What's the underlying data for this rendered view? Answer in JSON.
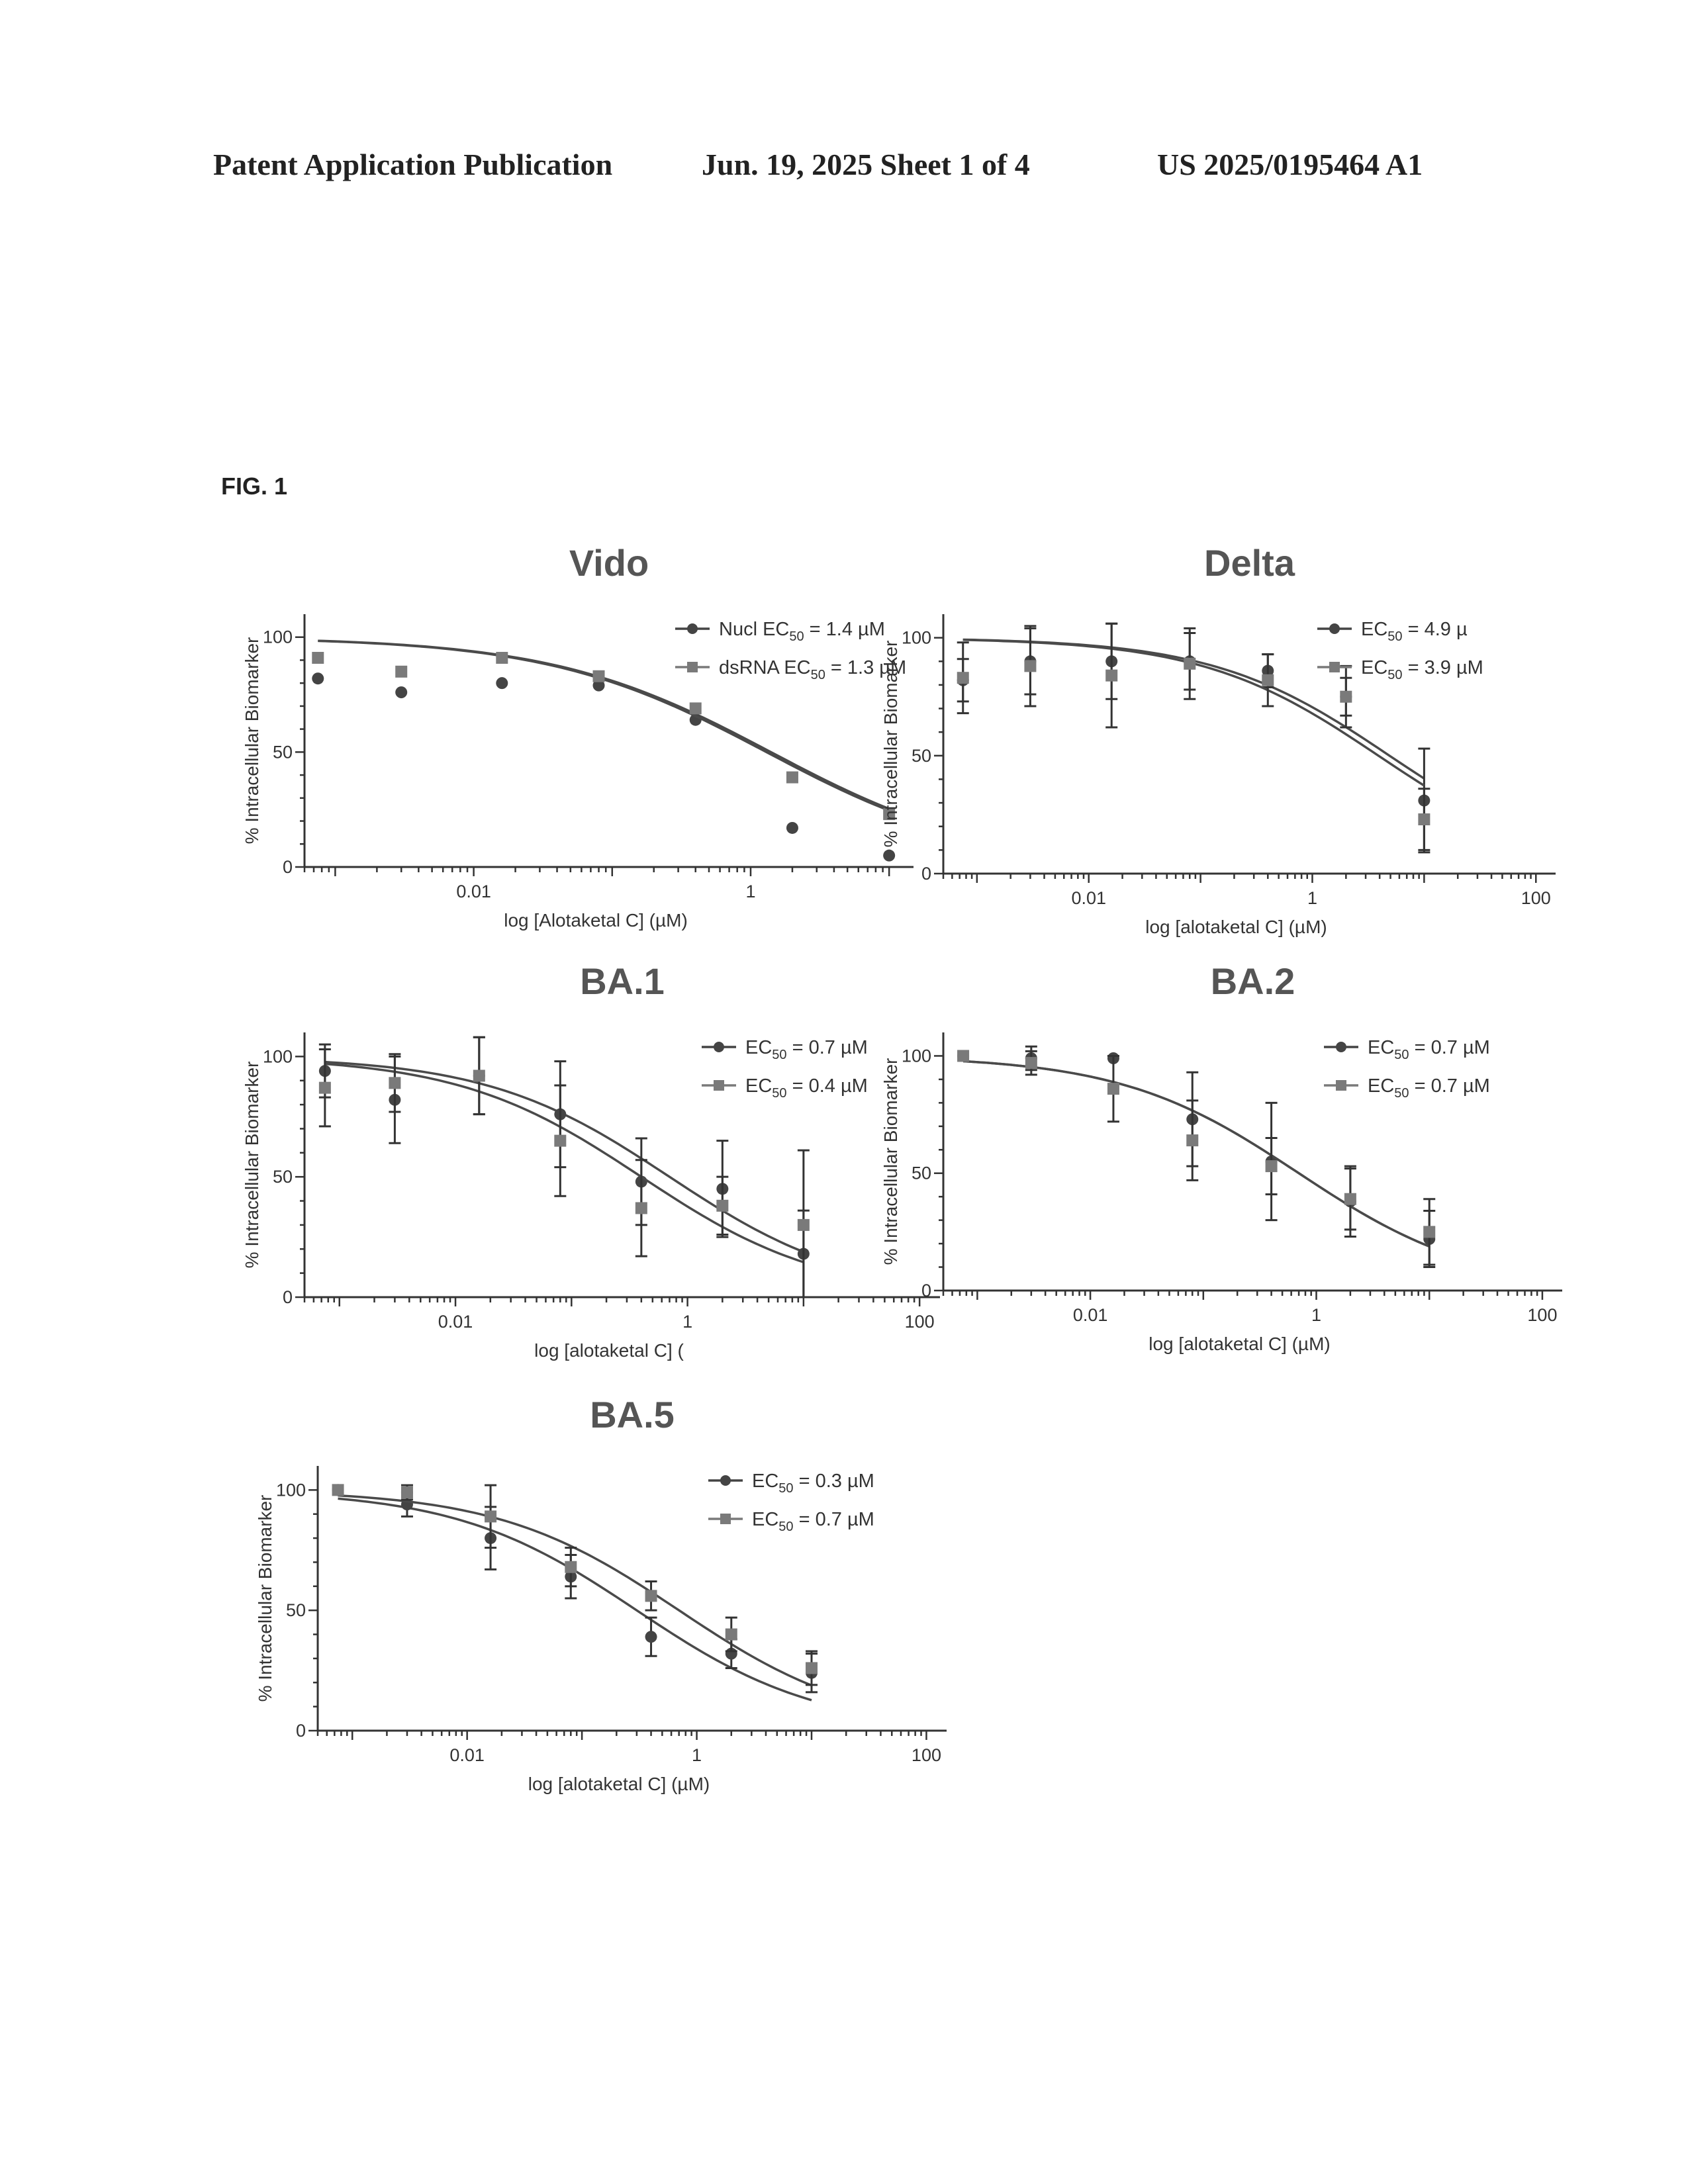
{
  "header": {
    "left": "Patent Application Publication",
    "middle": "Jun. 19, 2025  Sheet 1 of 4",
    "right": "US 2025/0195464 A1"
  },
  "figure_label": "FIG. 1",
  "colors": {
    "circle_series": "#444444",
    "square_series": "#7a7a7a",
    "axis": "#333333"
  },
  "chart_data": [
    {
      "type": "scatter",
      "title": "Vido",
      "xlabel": "log [Alotaketal C] (µM)",
      "ylabel": "% Intracellular Biomarker",
      "x_scale": "log",
      "xlim": [
        0.0006,
        15
      ],
      "ylim": [
        0,
        110
      ],
      "x_ticks": [
        0.01,
        1
      ],
      "x_tick_labels": [
        "0.01",
        "1"
      ],
      "y_ticks": [
        0,
        50,
        100
      ],
      "y_tick_labels": [
        "0",
        "50",
        "100"
      ],
      "series": [
        {
          "name": "Nucl",
          "legend": [
            "Nucl EC",
            "50",
            " = 1.4 µM"
          ],
          "ec50": 1.4,
          "marker": "circle",
          "points": [
            [
              0.00075,
              82
            ],
            [
              0.003,
              76
            ],
            [
              0.016,
              80
            ],
            [
              0.08,
              79
            ],
            [
              0.4,
              64
            ],
            [
              2.0,
              17
            ],
            [
              10,
              5
            ]
          ]
        },
        {
          "name": "dsRNA",
          "legend": [
            "dsRNA EC",
            "50",
            " = 1.3 µM"
          ],
          "ec50": 1.3,
          "marker": "square",
          "points": [
            [
              0.00075,
              91
            ],
            [
              0.003,
              85
            ],
            [
              0.016,
              91
            ],
            [
              0.08,
              83
            ],
            [
              0.4,
              69
            ],
            [
              2.0,
              39
            ],
            [
              10,
              23
            ]
          ]
        }
      ]
    },
    {
      "type": "scatter",
      "title": "Delta",
      "xlabel": "log [alotaketal C] (µM)",
      "ylabel": "% Intracellular Biomarker",
      "x_scale": "log",
      "xlim": [
        0.0005,
        150
      ],
      "ylim": [
        0,
        110
      ],
      "x_ticks": [
        0.01,
        1,
        100
      ],
      "x_tick_labels": [
        "0.01",
        "1",
        "100"
      ],
      "y_ticks": [
        0,
        50,
        100
      ],
      "y_tick_labels": [
        "0",
        "50",
        "100"
      ],
      "series": [
        {
          "name": "",
          "legend": [
            "EC",
            "50",
            " = 4.9 µ"
          ],
          "ec50": 4.9,
          "marker": "circle",
          "points": [
            [
              0.00075,
              82,
              9
            ],
            [
              0.003,
              90,
              14
            ],
            [
              0.016,
              90,
              16
            ],
            [
              0.08,
              90,
              12
            ],
            [
              0.4,
              86,
              7
            ],
            [
              2.0,
              75,
              8
            ],
            [
              10,
              31,
              22
            ]
          ]
        },
        {
          "name": "",
          "legend": [
            "EC",
            "50",
            " = 3.9 µM"
          ],
          "ec50": 3.9,
          "marker": "square",
          "points": [
            [
              0.00075,
              83,
              15
            ],
            [
              0.003,
              88,
              17
            ],
            [
              0.016,
              84,
              22
            ],
            [
              0.08,
              89,
              15
            ],
            [
              0.4,
              82,
              11
            ],
            [
              2.0,
              75,
              13
            ],
            [
              10,
              23,
              13
            ]
          ]
        }
      ]
    },
    {
      "type": "scatter",
      "title": "BA.1",
      "xlabel": "log [alotaketal C] (",
      "ylabel": "% Intracellular Biomarker",
      "x_scale": "log",
      "xlim": [
        0.0005,
        150
      ],
      "ylim": [
        0,
        110
      ],
      "x_ticks": [
        0.01,
        1,
        100
      ],
      "x_tick_labels": [
        "0.01",
        "1",
        "100"
      ],
      "y_ticks": [
        0,
        50,
        100
      ],
      "y_tick_labels": [
        "0",
        "50",
        "100"
      ],
      "series": [
        {
          "name": "",
          "legend": [
            "EC",
            "50",
            " = 0.7 µM"
          ],
          "ec50": 0.7,
          "marker": "circle",
          "points": [
            [
              0.00075,
              94,
              11
            ],
            [
              0.003,
              82,
              18
            ],
            [
              0.016,
              92,
              16
            ],
            [
              0.08,
              76,
              22
            ],
            [
              0.4,
              48,
              18
            ],
            [
              2.0,
              45,
              20
            ],
            [
              10,
              18,
              18
            ]
          ]
        },
        {
          "name": "",
          "legend": [
            "EC",
            "50",
            " = 0.4 µM"
          ],
          "ec50": 0.4,
          "marker": "square",
          "points": [
            [
              0.00075,
              87,
              16
            ],
            [
              0.003,
              89,
              12
            ],
            [
              0.016,
              92,
              16
            ],
            [
              0.08,
              65,
              23
            ],
            [
              0.4,
              37,
              20
            ],
            [
              2.0,
              38,
              12
            ],
            [
              10,
              30,
              31
            ]
          ]
        }
      ]
    },
    {
      "type": "scatter",
      "title": "BA.2",
      "xlabel": "log [alotaketal C] (µM)",
      "ylabel": "% Intracellular Biomarker",
      "x_scale": "log",
      "xlim": [
        0.0005,
        150
      ],
      "ylim": [
        0,
        110
      ],
      "x_ticks": [
        0.01,
        1,
        100
      ],
      "x_tick_labels": [
        "0.01",
        "1",
        "100"
      ],
      "y_ticks": [
        0,
        50,
        100
      ],
      "y_tick_labels": [
        "0",
        "50",
        "100"
      ],
      "series": [
        {
          "name": "",
          "legend": [
            "EC",
            "50",
            " = 0.7 µM"
          ],
          "ec50": 0.7,
          "marker": "circle",
          "points": [
            [
              0.00075,
              100,
              0
            ],
            [
              0.003,
              99,
              5
            ],
            [
              0.016,
              99,
              0
            ],
            [
              0.08,
              73,
              20
            ],
            [
              0.4,
              55,
              25
            ],
            [
              2.0,
              38,
              15
            ],
            [
              10,
              22,
              12
            ]
          ]
        },
        {
          "name": "",
          "legend": [
            "EC",
            "50",
            " = 0.7 µM"
          ],
          "ec50": 0.7,
          "marker": "square",
          "points": [
            [
              0.00075,
              100,
              0
            ],
            [
              0.003,
              97,
              5
            ],
            [
              0.016,
              86,
              14
            ],
            [
              0.08,
              64,
              17
            ],
            [
              0.4,
              53,
              12
            ],
            [
              2.0,
              39,
              13
            ],
            [
              10,
              25,
              14
            ]
          ]
        }
      ]
    },
    {
      "type": "scatter",
      "title": "BA.5",
      "xlabel": "log [alotaketal C] (µM)",
      "ylabel": "% Intracellular Biomarker",
      "x_scale": "log",
      "xlim": [
        0.0005,
        150
      ],
      "ylim": [
        0,
        110
      ],
      "x_ticks": [
        0.01,
        1,
        100
      ],
      "x_tick_labels": [
        "0.01",
        "1",
        "100"
      ],
      "y_ticks": [
        0,
        50,
        100
      ],
      "y_tick_labels": [
        "0",
        "50",
        "100"
      ],
      "series": [
        {
          "name": "",
          "legend": [
            "EC",
            "50",
            " = 0.3 µM"
          ],
          "ec50": 0.3,
          "marker": "circle",
          "points": [
            [
              0.00075,
              100,
              0
            ],
            [
              0.003,
              94,
              5
            ],
            [
              0.016,
              80,
              13
            ],
            [
              0.08,
              64,
              9
            ],
            [
              0.4,
              39,
              8
            ],
            [
              2.0,
              32,
              6
            ],
            [
              10,
              24,
              8
            ]
          ]
        },
        {
          "name": "",
          "legend": [
            "EC",
            "50",
            " = 0.7 µM"
          ],
          "ec50": 0.7,
          "marker": "square",
          "points": [
            [
              0.00075,
              100,
              0
            ],
            [
              0.003,
              99,
              3
            ],
            [
              0.016,
              89,
              13
            ],
            [
              0.08,
              68,
              8
            ],
            [
              0.4,
              56,
              6
            ],
            [
              2.0,
              40,
              7
            ],
            [
              10,
              26,
              7
            ]
          ]
        }
      ]
    }
  ]
}
